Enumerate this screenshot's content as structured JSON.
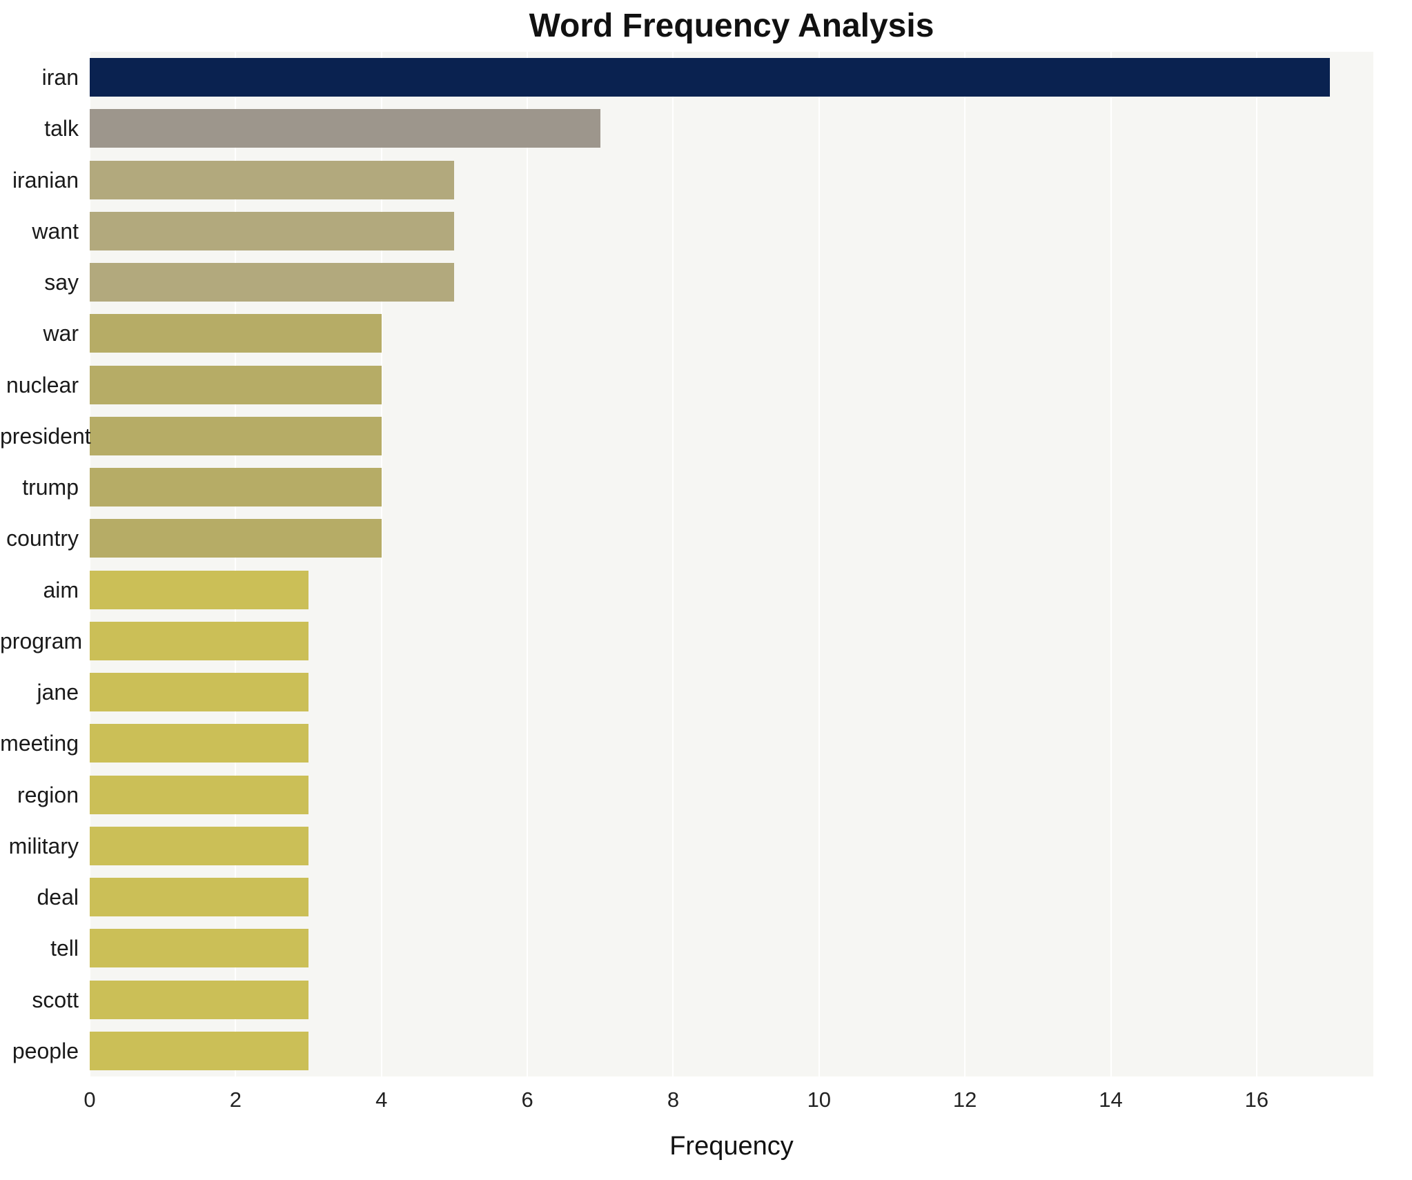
{
  "chart_data": {
    "type": "bar",
    "orientation": "horizontal",
    "title": "Word Frequency Analysis",
    "xlabel": "Frequency",
    "ylabel": "",
    "categories": [
      "iran",
      "talk",
      "iranian",
      "want",
      "say",
      "war",
      "nuclear",
      "president",
      "trump",
      "country",
      "aim",
      "program",
      "jane",
      "meeting",
      "region",
      "military",
      "deal",
      "tell",
      "scott",
      "people"
    ],
    "values": [
      17,
      7,
      5,
      5,
      5,
      4,
      4,
      4,
      4,
      4,
      3,
      3,
      3,
      3,
      3,
      3,
      3,
      3,
      3,
      3
    ],
    "bar_colors": [
      "#0a2250",
      "#9d968c",
      "#b2a97d",
      "#b2a97d",
      "#b2a97d",
      "#b6ac66",
      "#b6ac66",
      "#b6ac66",
      "#b6ac66",
      "#b6ac66",
      "#cbbf57",
      "#cbbf57",
      "#cbbf57",
      "#cbbf57",
      "#cbbf57",
      "#cbbf57",
      "#cbbf57",
      "#cbbf57",
      "#cbbf57",
      "#cbbf57"
    ],
    "xticks": [
      0,
      2,
      4,
      6,
      8,
      10,
      12,
      14,
      16
    ],
    "xlim": [
      0,
      17.6
    ],
    "grid": true,
    "plot_background": "#f6f6f3",
    "gridline_color": "#ffffff",
    "legend": "none"
  }
}
